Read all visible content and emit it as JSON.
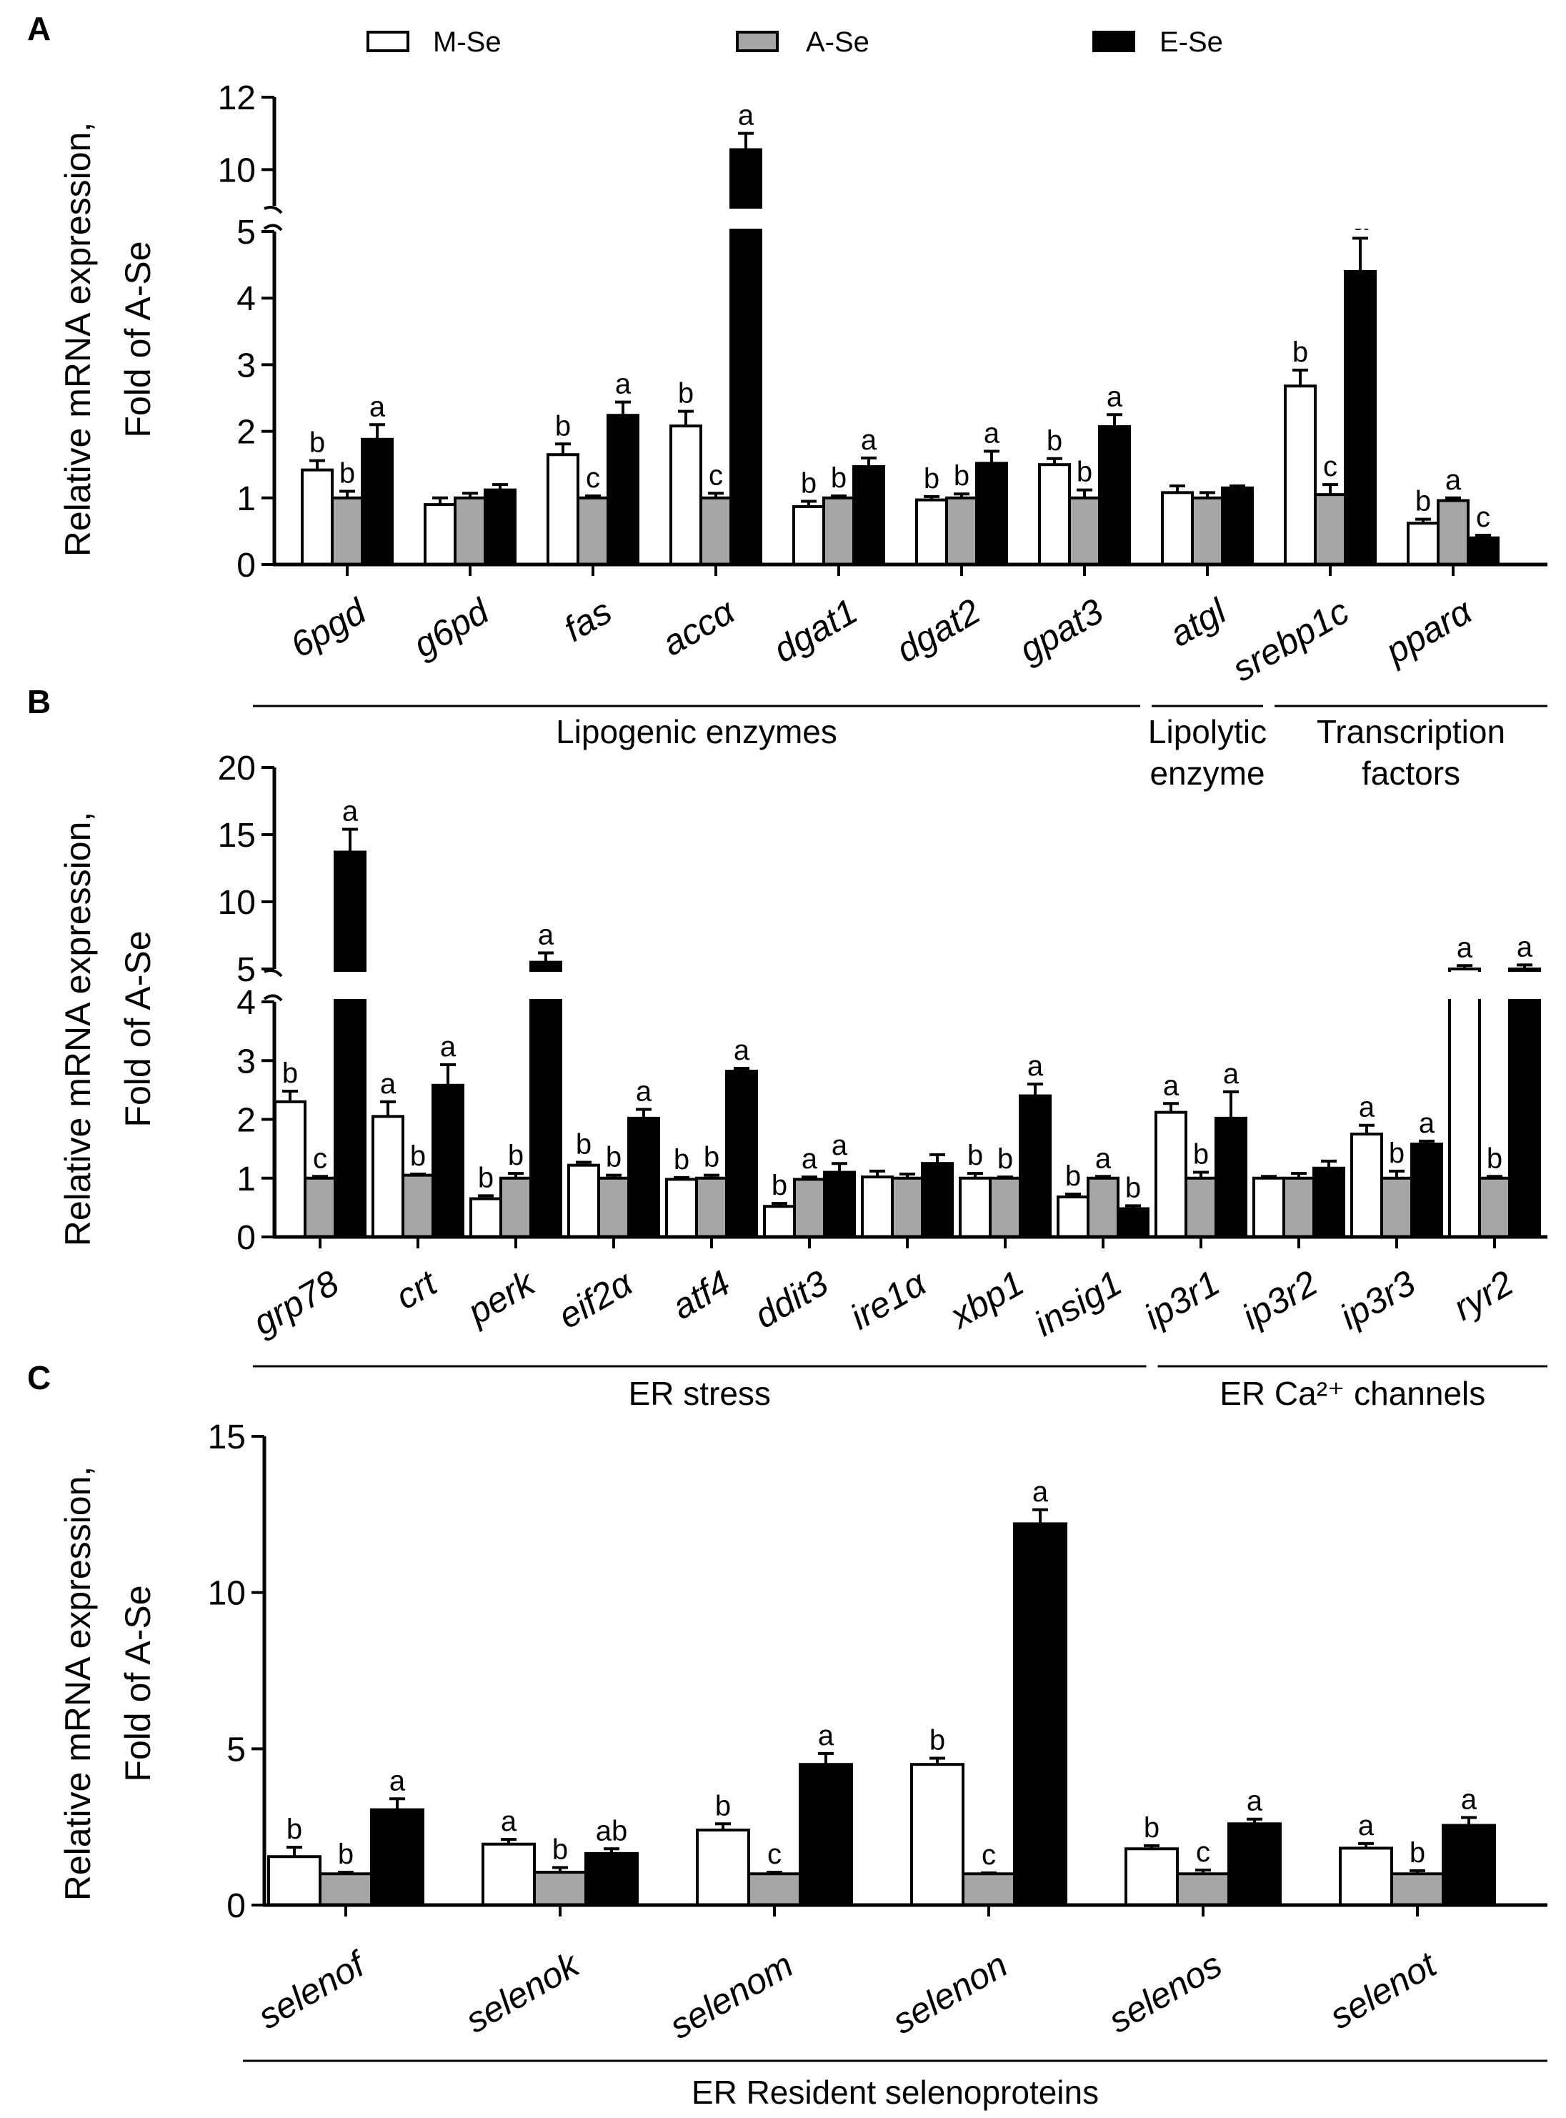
{
  "legend": [
    {
      "name": "M-Se",
      "color": "#ffffff"
    },
    {
      "name": "A-Se",
      "color": "#a6a6a6"
    },
    {
      "name": "E-Se",
      "color": "#000000"
    }
  ],
  "chart_data": [
    {
      "panel": "A",
      "type": "bar",
      "ylabel": [
        "Relative mRNA expression,",
        "Fold of A-Se"
      ],
      "y_axis_break": {
        "lower": [
          0,
          5
        ],
        "upper": [
          9,
          12
        ]
      },
      "yticks_lower": [
        0,
        1,
        2,
        3,
        4,
        5
      ],
      "yticks_upper": [
        10,
        12
      ],
      "categories": [
        "6pgd",
        "g6pd",
        "fas",
        "accα",
        "dgat1",
        "dgat2",
        "gpat3",
        "atgl",
        "srebp1c",
        "pparα"
      ],
      "series": [
        {
          "name": "M-Se",
          "values": [
            1.42,
            0.9,
            1.65,
            2.08,
            0.87,
            0.97,
            1.5,
            1.08,
            2.68,
            0.62
          ],
          "errors": [
            0.14,
            0.1,
            0.16,
            0.22,
            0.08,
            0.05,
            0.09,
            0.1,
            0.24,
            0.06
          ]
        },
        {
          "name": "A-Se",
          "values": [
            1.0,
            1.0,
            1.0,
            1.0,
            1.0,
            1.0,
            1.0,
            1.0,
            1.05,
            0.96
          ],
          "errors": [
            0.1,
            0.07,
            0.03,
            0.07,
            0.03,
            0.06,
            0.12,
            0.08,
            0.15,
            0.04
          ]
        },
        {
          "name": "E-Se",
          "values": [
            1.88,
            1.12,
            2.24,
            10.55,
            1.47,
            1.52,
            2.07,
            1.15,
            4.4,
            0.4
          ],
          "errors": [
            0.22,
            0.08,
            0.2,
            0.45,
            0.13,
            0.18,
            0.18,
            0.03,
            0.5,
            0.04
          ]
        }
      ],
      "significance": [
        [
          "b",
          "",
          "b",
          "b",
          "b",
          "b",
          "b",
          "",
          "b",
          "b"
        ],
        [
          "b",
          "",
          "c",
          "c",
          "b",
          "b",
          "b",
          "",
          "c",
          "a"
        ],
        [
          "a",
          "",
          "a",
          "a",
          "a",
          "a",
          "a",
          "",
          "a",
          "c"
        ]
      ],
      "groups": [
        {
          "label": [
            "Lipogenic enzymes"
          ],
          "from": 0,
          "to": 6
        },
        {
          "label": [
            "Lipolytic",
            "enzyme"
          ],
          "from": 7,
          "to": 7
        },
        {
          "label": [
            "Transcription",
            "factors"
          ],
          "from": 8,
          "to": 9
        }
      ]
    },
    {
      "panel": "B",
      "type": "bar",
      "ylabel": [
        "Relative mRNA expression,",
        "Fold of A-Se"
      ],
      "y_axis_break": {
        "lower": [
          0,
          4
        ],
        "upper": [
          5,
          20
        ]
      },
      "yticks_lower": [
        0,
        1,
        2,
        3,
        4
      ],
      "yticks_upper": [
        5,
        10,
        15,
        20
      ],
      "categories": [
        "grp78",
        "crt",
        "perk",
        "eif2α",
        "atf4",
        "ddit3",
        "ire1α",
        "xbp1",
        "insig1",
        "ip3r1",
        "ip3r2",
        "ip3r3",
        "ryr2"
      ],
      "series": [
        {
          "name": "M-Se",
          "values": [
            2.3,
            2.05,
            0.65,
            1.22,
            0.98,
            0.52,
            1.02,
            1.0,
            0.68,
            2.12,
            1.0,
            1.75,
            5.0
          ],
          "errors": [
            0.18,
            0.25,
            0.05,
            0.05,
            0.03,
            0.05,
            0.1,
            0.08,
            0.05,
            0.15,
            0.03,
            0.15,
            0.25
          ]
        },
        {
          "name": "A-Se",
          "values": [
            1.0,
            1.05,
            1.0,
            1.0,
            1.0,
            0.98,
            1.0,
            1.0,
            1.0,
            1.0,
            1.0,
            1.0,
            1.0
          ],
          "errors": [
            0.03,
            0.02,
            0.08,
            0.05,
            0.05,
            0.04,
            0.07,
            0.02,
            0.03,
            0.1,
            0.08,
            0.12,
            0.03
          ]
        },
        {
          "name": "E-Se",
          "values": [
            13.7,
            2.58,
            5.5,
            2.02,
            2.82,
            1.1,
            1.25,
            2.4,
            0.48,
            2.02,
            1.17,
            1.58,
            5.0
          ],
          "errors": [
            1.7,
            0.35,
            0.7,
            0.15,
            0.05,
            0.15,
            0.15,
            0.2,
            0.05,
            0.45,
            0.12,
            0.05,
            0.3
          ]
        }
      ],
      "significance": [
        [
          "b",
          "a",
          "b",
          "b",
          "b",
          "b",
          "",
          "b",
          "b",
          "a",
          "",
          "a",
          "a"
        ],
        [
          "c",
          "b",
          "b",
          "b",
          "b",
          "a",
          "",
          "b",
          "a",
          "b",
          "",
          "b",
          "b"
        ],
        [
          "a",
          "a",
          "a",
          "a",
          "a",
          "a",
          "",
          "a",
          "b",
          "a",
          "",
          "a",
          "a"
        ]
      ],
      "groups": [
        {
          "label": [
            "ER stress"
          ],
          "from": 0,
          "to": 8
        },
        {
          "label": [
            "ER Ca²⁺ channels"
          ],
          "from": 9,
          "to": 12
        }
      ]
    },
    {
      "panel": "C",
      "type": "bar",
      "ylabel": [
        "Relative mRNA expression,",
        "Fold of A-Se"
      ],
      "ylim": [
        0,
        15
      ],
      "yticks": [
        0,
        5,
        10,
        15
      ],
      "categories": [
        "selenof",
        "selenok",
        "selenom",
        "selenon",
        "selenos",
        "selenot"
      ],
      "series": [
        {
          "name": "M-Se",
          "values": [
            1.55,
            1.95,
            2.4,
            4.5,
            1.8,
            1.82
          ],
          "errors": [
            0.3,
            0.15,
            0.2,
            0.2,
            0.1,
            0.15
          ]
        },
        {
          "name": "A-Se",
          "values": [
            1.0,
            1.05,
            1.0,
            1.0,
            1.0,
            1.0
          ],
          "errors": [
            0.05,
            0.15,
            0.05,
            0.03,
            0.12,
            0.1
          ]
        },
        {
          "name": "E-Se",
          "values": [
            3.05,
            1.65,
            4.5,
            12.2,
            2.6,
            2.55
          ],
          "errors": [
            0.35,
            0.15,
            0.35,
            0.45,
            0.15,
            0.25
          ]
        }
      ],
      "significance": [
        [
          "b",
          "a",
          "b",
          "b",
          "b",
          "a"
        ],
        [
          "b",
          "b",
          "c",
          "c",
          "c",
          "b"
        ],
        [
          "a",
          "ab",
          "a",
          "a",
          "a",
          "a"
        ]
      ],
      "groups": [
        {
          "label": [
            "ER Resident selenoproteins"
          ],
          "from": 0,
          "to": 5
        }
      ]
    }
  ]
}
